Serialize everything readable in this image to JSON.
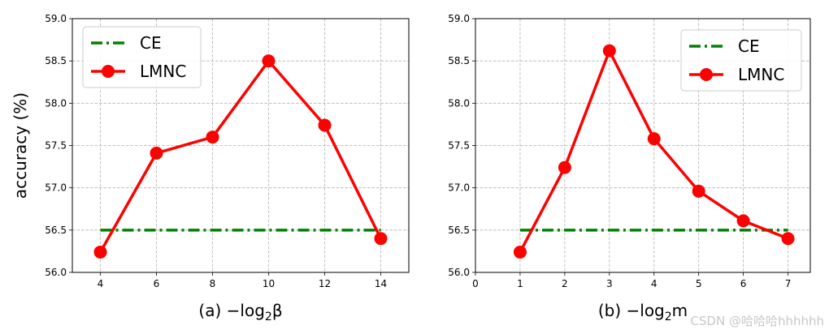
{
  "chart_data": [
    {
      "type": "line",
      "xlabel": {
        "prefix": "(a) −log",
        "sub": "2",
        "suffix": "β"
      },
      "ylabel": "accuracy (%)",
      "xlim": [
        3,
        15
      ],
      "ylim": [
        56.0,
        59.0
      ],
      "xticks": [
        "4",
        "6",
        "8",
        "10",
        "12",
        "14"
      ],
      "yticks": [
        "56.0",
        "56.5",
        "57.0",
        "57.5",
        "58.0",
        "58.5",
        "59.0"
      ],
      "grid": true,
      "legend_position": "top-left",
      "series": [
        {
          "name": "CE",
          "style": "dash-dot",
          "color": "#008000",
          "x": [
            4,
            14
          ],
          "y": [
            56.5,
            56.5
          ]
        },
        {
          "name": "LMNC",
          "style": "line-marker",
          "color": "#ff0000",
          "x": [
            4,
            6,
            8,
            10,
            12,
            14
          ],
          "y": [
            56.24,
            57.41,
            57.6,
            58.5,
            57.74,
            56.4
          ]
        }
      ]
    },
    {
      "type": "line",
      "xlabel": {
        "prefix": "(b) −log",
        "sub": "2",
        "suffix": "m"
      },
      "ylabel": "",
      "xlim": [
        0,
        7.5
      ],
      "ylim": [
        56.0,
        59.0
      ],
      "xticks": [
        "0",
        "1",
        "2",
        "3",
        "4",
        "5",
        "6",
        "7"
      ],
      "yticks": [
        "56.0",
        "56.5",
        "57.0",
        "57.5",
        "58.0",
        "58.5",
        "59.0"
      ],
      "grid": true,
      "legend_position": "top-right",
      "series": [
        {
          "name": "CE",
          "style": "dash-dot",
          "color": "#008000",
          "x": [
            1,
            7
          ],
          "y": [
            56.5,
            56.5
          ]
        },
        {
          "name": "LMNC",
          "style": "line-marker",
          "color": "#ff0000",
          "x": [
            1,
            2,
            3,
            4,
            5,
            6,
            7
          ],
          "y": [
            56.24,
            57.24,
            58.62,
            57.58,
            56.96,
            56.61,
            56.4
          ]
        }
      ]
    }
  ],
  "watermark": "CSDN @哈哈哈hhhhhh"
}
